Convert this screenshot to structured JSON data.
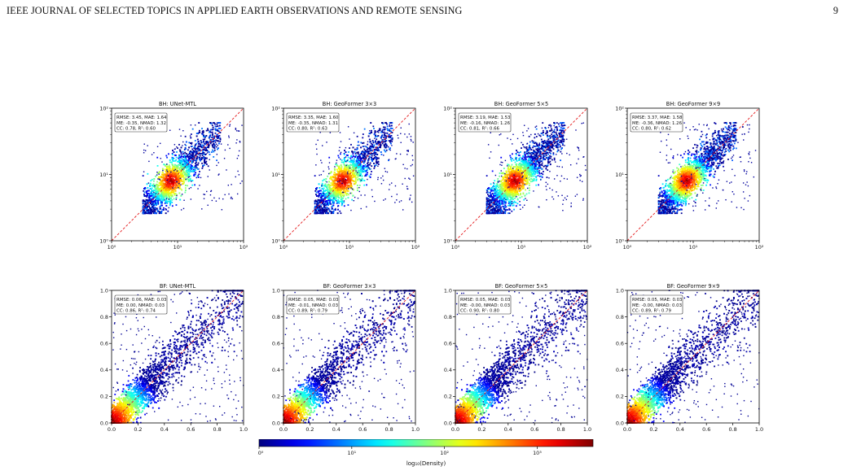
{
  "header": {
    "title": "IEEE JOURNAL OF SELECTED TOPICS IN APPLIED EARTH OBSERVATIONS AND REMOTE SENSING",
    "page_number": "9"
  },
  "colors": {
    "identity_line": "#e41a1c",
    "scatter_low": "#00007f",
    "scatter_high": "#7f0000"
  },
  "colormap": "jet",
  "chart_data": [
    {
      "type": "scatter",
      "variable": "BH",
      "title": "BH: UNet-MTL",
      "xscale": "log",
      "yscale": "log",
      "xlim": [
        1,
        100
      ],
      "ylim": [
        1,
        100
      ],
      "x_ticks": [
        "10⁰",
        "10¹",
        "10²"
      ],
      "y_ticks": [
        "10⁰",
        "10¹",
        "10²"
      ],
      "metrics": [
        "RMSE: 3.45, MAE: 1.64",
        "ME: -0.35, NMAD: 1.32",
        "CC: 0.78, R²: 0.60"
      ],
      "identity_line": [
        [
          1,
          1
        ],
        [
          100,
          100
        ]
      ],
      "density_peak": [
        8,
        8
      ],
      "sample_range": [
        3,
        40
      ]
    },
    {
      "type": "scatter",
      "variable": "BH",
      "title": "BH: GeoFormer 3×3",
      "xscale": "log",
      "yscale": "log",
      "xlim": [
        1,
        100
      ],
      "ylim": [
        1,
        100
      ],
      "x_ticks": [
        "10⁰",
        "10¹",
        "10²"
      ],
      "y_ticks": [
        "10⁰",
        "10¹",
        "10²"
      ],
      "metrics": [
        "RMSE: 3.35, MAE: 1.60",
        "ME: -0.35, NMAD: 1.31",
        "CC: 0.80, R²: 0.63"
      ],
      "identity_line": [
        [
          1,
          1
        ],
        [
          100,
          100
        ]
      ],
      "density_peak": [
        8,
        8
      ],
      "sample_range": [
        3,
        40
      ]
    },
    {
      "type": "scatter",
      "variable": "BH",
      "title": "BH: GeoFormer 5×5",
      "xscale": "log",
      "yscale": "log",
      "xlim": [
        1,
        100
      ],
      "ylim": [
        1,
        100
      ],
      "x_ticks": [
        "10⁰",
        "10¹",
        "10²"
      ],
      "y_ticks": [
        "10⁰",
        "10¹",
        "10²"
      ],
      "metrics": [
        "RMSE: 3.19, MAE: 1.53",
        "ME: -0.16, NMAD: 1.26",
        "CC: 0.81, R²: 0.66"
      ],
      "identity_line": [
        [
          1,
          1
        ],
        [
          100,
          100
        ]
      ],
      "density_peak": [
        8,
        8
      ],
      "sample_range": [
        3,
        40
      ]
    },
    {
      "type": "scatter",
      "variable": "BH",
      "title": "BH: GeoFormer 9×9",
      "xscale": "log",
      "yscale": "log",
      "xlim": [
        1,
        100
      ],
      "ylim": [
        1,
        100
      ],
      "x_ticks": [
        "10⁰",
        "10¹",
        "10²"
      ],
      "y_ticks": [
        "10⁰",
        "10¹",
        "10²"
      ],
      "metrics": [
        "RMSE: 3.37, MAE: 1.58",
        "ME: -0.36, NMAD: 1.26",
        "CC: 0.80, R²: 0.62"
      ],
      "identity_line": [
        [
          1,
          1
        ],
        [
          100,
          100
        ]
      ],
      "density_peak": [
        8,
        8
      ],
      "sample_range": [
        3,
        40
      ]
    },
    {
      "type": "scatter",
      "variable": "BF",
      "title": "BF: UNet-MTL",
      "xscale": "linear",
      "yscale": "linear",
      "xlim": [
        0,
        1
      ],
      "ylim": [
        0,
        1
      ],
      "x_ticks": [
        "0.0",
        "0.2",
        "0.4",
        "0.6",
        "0.8",
        "1.0"
      ],
      "y_ticks": [
        "0.0",
        "0.2",
        "0.4",
        "0.6",
        "0.8",
        "1.0"
      ],
      "metrics": [
        "RMSE: 0.06, MAE: 0.03",
        "ME: 0.00, NMAD: 0.03",
        "CC: 0.86, R²: 0.74"
      ],
      "identity_line": [
        [
          0,
          0
        ],
        [
          1,
          1
        ]
      ],
      "density_peak": [
        0.05,
        0.05
      ],
      "sample_range": [
        0,
        1
      ]
    },
    {
      "type": "scatter",
      "variable": "BF",
      "title": "BF: GeoFormer 3×3",
      "xscale": "linear",
      "yscale": "linear",
      "xlim": [
        0,
        1
      ],
      "ylim": [
        0,
        1
      ],
      "x_ticks": [
        "0.0",
        "0.2",
        "0.4",
        "0.6",
        "0.8",
        "1.0"
      ],
      "y_ticks": [
        "0.0",
        "0.2",
        "0.4",
        "0.6",
        "0.8",
        "1.0"
      ],
      "metrics": [
        "RMSE: 0.05, MAE: 0.03",
        "ME: -0.01, NMAD: 0.03",
        "CC: 0.89, R²: 0.79"
      ],
      "identity_line": [
        [
          0,
          0
        ],
        [
          1,
          1
        ]
      ],
      "density_peak": [
        0.05,
        0.05
      ],
      "sample_range": [
        0,
        1
      ]
    },
    {
      "type": "scatter",
      "variable": "BF",
      "title": "BF: GeoFormer 5×5",
      "xscale": "linear",
      "yscale": "linear",
      "xlim": [
        0,
        1
      ],
      "ylim": [
        0,
        1
      ],
      "x_ticks": [
        "0.0",
        "0.2",
        "0.4",
        "0.6",
        "0.8",
        "1.0"
      ],
      "y_ticks": [
        "0.0",
        "0.2",
        "0.4",
        "0.6",
        "0.8",
        "1.0"
      ],
      "metrics": [
        "RMSE: 0.05, MAE: 0.03",
        "ME: -0.00, NMAD: 0.03",
        "CC: 0.90, R²: 0.80"
      ],
      "identity_line": [
        [
          0,
          0
        ],
        [
          1,
          1
        ]
      ],
      "density_peak": [
        0.05,
        0.05
      ],
      "sample_range": [
        0,
        1
      ]
    },
    {
      "type": "scatter",
      "variable": "BF",
      "title": "BF: GeoFormer 9×9",
      "xscale": "linear",
      "yscale": "linear",
      "xlim": [
        0,
        1
      ],
      "ylim": [
        0,
        1
      ],
      "x_ticks": [
        "0.0",
        "0.2",
        "0.4",
        "0.6",
        "0.8",
        "1.0"
      ],
      "y_ticks": [
        "0.0",
        "0.2",
        "0.4",
        "0.6",
        "0.8",
        "1.0"
      ],
      "metrics": [
        "RMSE: 0.05, MAE: 0.03",
        "ME: -0.00, NMAD: 0.03",
        "CC: 0.89, R²: 0.79"
      ],
      "identity_line": [
        [
          0,
          0
        ],
        [
          1,
          1
        ]
      ],
      "density_peak": [
        0.05,
        0.05
      ],
      "sample_range": [
        0,
        1
      ]
    }
  ],
  "colorbar": {
    "label": "log₁₀(Density)",
    "ticks": [
      "10⁰",
      "10¹",
      "10²",
      "10³"
    ],
    "tick_values": [
      1,
      10,
      100,
      1000
    ],
    "range": [
      1,
      4000
    ],
    "scale": "log",
    "colormap": "jet"
  }
}
